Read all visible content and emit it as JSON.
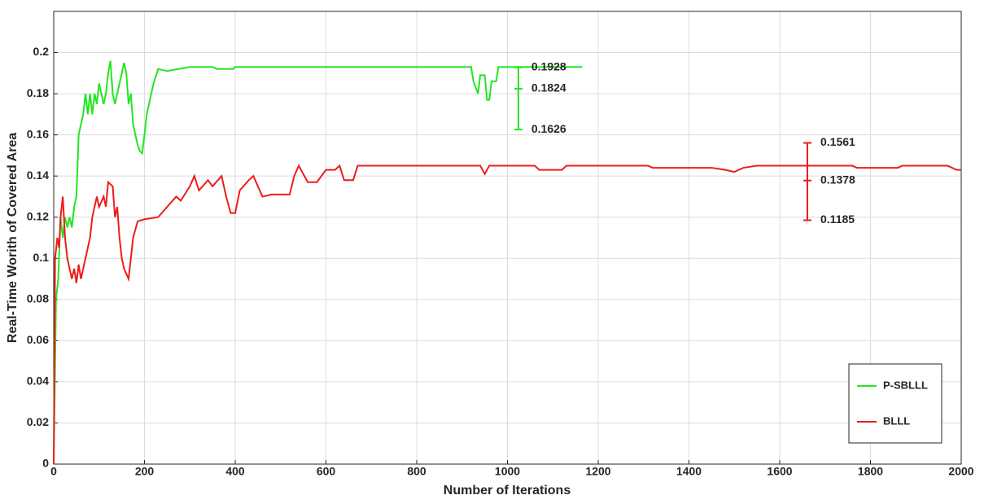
{
  "chart_data": {
    "type": "line",
    "xlabel": "Number of Iterations",
    "ylabel": "Real-Time Worith of Covered Area",
    "xlim": [
      0,
      2000
    ],
    "ylim": [
      0,
      0.22
    ],
    "xticks": [
      0,
      200,
      400,
      600,
      800,
      1000,
      1200,
      1400,
      1600,
      1800,
      2000
    ],
    "yticks": [
      0,
      0.02,
      0.04,
      0.06,
      0.08,
      0.1,
      0.12,
      0.14,
      0.16,
      0.18,
      0.2
    ],
    "grid": true,
    "legend": "lower right",
    "series": [
      {
        "name": "P-SBLLL",
        "color": "#22e622",
        "x": [
          0,
          5,
          10,
          15,
          20,
          25,
          30,
          35,
          40,
          45,
          50,
          55,
          60,
          65,
          70,
          75,
          80,
          85,
          90,
          95,
          100,
          105,
          110,
          115,
          120,
          125,
          130,
          135,
          140,
          145,
          150,
          155,
          160,
          165,
          170,
          175,
          180,
          185,
          190,
          195,
          200,
          205,
          210,
          215,
          220,
          230,
          250,
          300,
          350,
          360,
          395,
          400,
          920,
          925,
          935,
          940,
          950,
          955,
          960,
          965,
          975,
          980,
          1165
        ],
        "values": [
          0,
          0.08,
          0.09,
          0.12,
          0.11,
          0.12,
          0.115,
          0.12,
          0.115,
          0.125,
          0.13,
          0.16,
          0.165,
          0.17,
          0.18,
          0.17,
          0.18,
          0.17,
          0.18,
          0.175,
          0.185,
          0.18,
          0.175,
          0.18,
          0.19,
          0.196,
          0.18,
          0.175,
          0.18,
          0.185,
          0.19,
          0.195,
          0.19,
          0.175,
          0.18,
          0.165,
          0.16,
          0.155,
          0.152,
          0.151,
          0.16,
          0.17,
          0.175,
          0.18,
          0.185,
          0.192,
          0.191,
          0.193,
          0.193,
          0.192,
          0.192,
          0.193,
          0.193,
          0.186,
          0.18,
          0.189,
          0.189,
          0.177,
          0.177,
          0.186,
          0.186,
          0.193,
          0.193
        ]
      },
      {
        "name": "BLLL",
        "color": "#ee1c1c",
        "x": [
          0,
          3,
          8,
          12,
          15,
          20,
          25,
          30,
          35,
          40,
          45,
          50,
          55,
          60,
          65,
          70,
          75,
          80,
          85,
          95,
          100,
          110,
          115,
          120,
          130,
          135,
          140,
          145,
          150,
          155,
          165,
          170,
          175,
          185,
          200,
          230,
          250,
          270,
          280,
          300,
          310,
          320,
          340,
          350,
          370,
          380,
          390,
          400,
          410,
          430,
          440,
          460,
          480,
          520,
          530,
          540,
          560,
          580,
          600,
          620,
          630,
          640,
          660,
          670,
          940,
          950,
          960,
          1060,
          1070,
          1120,
          1130,
          1310,
          1320,
          1450,
          1480,
          1500,
          1520,
          1550,
          1760,
          1770,
          1860,
          1870,
          1970,
          1990,
          2000
        ],
        "values": [
          0,
          0.1,
          0.11,
          0.105,
          0.12,
          0.13,
          0.11,
          0.1,
          0.095,
          0.09,
          0.095,
          0.088,
          0.097,
          0.09,
          0.095,
          0.1,
          0.105,
          0.11,
          0.12,
          0.13,
          0.125,
          0.13,
          0.125,
          0.137,
          0.135,
          0.12,
          0.125,
          0.11,
          0.1,
          0.095,
          0.09,
          0.1,
          0.11,
          0.118,
          0.119,
          0.12,
          0.125,
          0.13,
          0.128,
          0.135,
          0.14,
          0.133,
          0.138,
          0.135,
          0.14,
          0.13,
          0.122,
          0.122,
          0.133,
          0.138,
          0.14,
          0.13,
          0.131,
          0.131,
          0.14,
          0.145,
          0.137,
          0.137,
          0.143,
          0.143,
          0.145,
          0.138,
          0.138,
          0.145,
          0.145,
          0.141,
          0.145,
          0.145,
          0.143,
          0.143,
          0.145,
          0.145,
          0.144,
          0.144,
          0.143,
          0.142,
          0.144,
          0.145,
          0.145,
          0.144,
          0.144,
          0.145,
          0.145,
          0.143,
          0.143
        ]
      }
    ],
    "error_bars": [
      {
        "x": 1024,
        "mean": 0.1824,
        "upper": 0.1928,
        "lower": 0.1626,
        "color": "#22e622"
      },
      {
        "x": 1661,
        "mean": 0.1378,
        "upper": 0.1561,
        "lower": 0.1185,
        "color": "#ee1c1c"
      }
    ]
  }
}
